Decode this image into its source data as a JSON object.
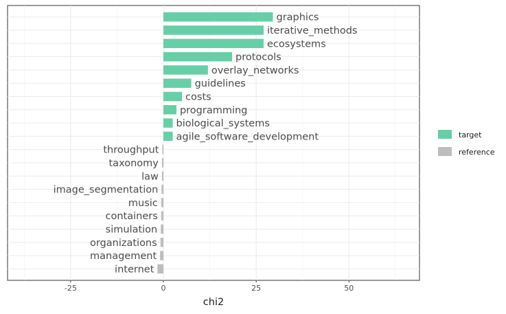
{
  "chart_data": {
    "type": "bar",
    "orientation": "horizontal",
    "xlabel": "chi2",
    "ylabel": "",
    "xlim": [
      -42,
      69
    ],
    "xticks": [
      -25,
      0,
      25,
      50
    ],
    "grid": true,
    "legend_position": "right",
    "colors": {
      "target": "#66cfa8",
      "reference": "#bdbdbd"
    },
    "legend": [
      "target",
      "reference"
    ],
    "bars": [
      {
        "label": "graphics",
        "value": 29.5,
        "group": "target"
      },
      {
        "label": "iterative_methods",
        "value": 27,
        "group": "target"
      },
      {
        "label": "ecosystems",
        "value": 27,
        "group": "target"
      },
      {
        "label": "protocols",
        "value": 18.5,
        "group": "target"
      },
      {
        "label": "overlay_networks",
        "value": 12,
        "group": "target"
      },
      {
        "label": "guidelines",
        "value": 7.5,
        "group": "target"
      },
      {
        "label": "costs",
        "value": 5,
        "group": "target"
      },
      {
        "label": "programming",
        "value": 3.5,
        "group": "target"
      },
      {
        "label": "biological_systems",
        "value": 2.5,
        "group": "target"
      },
      {
        "label": "agile_software_development",
        "value": 2.5,
        "group": "target"
      },
      {
        "label": "throughput",
        "value": -0.3,
        "group": "reference"
      },
      {
        "label": "taxonomy",
        "value": -0.4,
        "group": "reference"
      },
      {
        "label": "law",
        "value": -0.4,
        "group": "reference"
      },
      {
        "label": "image_segmentation",
        "value": -0.5,
        "group": "reference"
      },
      {
        "label": "music",
        "value": -0.6,
        "group": "reference"
      },
      {
        "label": "containers",
        "value": -0.6,
        "group": "reference"
      },
      {
        "label": "simulation",
        "value": -0.7,
        "group": "reference"
      },
      {
        "label": "organizations",
        "value": -0.8,
        "group": "reference"
      },
      {
        "label": "management",
        "value": -0.9,
        "group": "reference"
      },
      {
        "label": "internet",
        "value": -1.6,
        "group": "reference"
      }
    ]
  }
}
